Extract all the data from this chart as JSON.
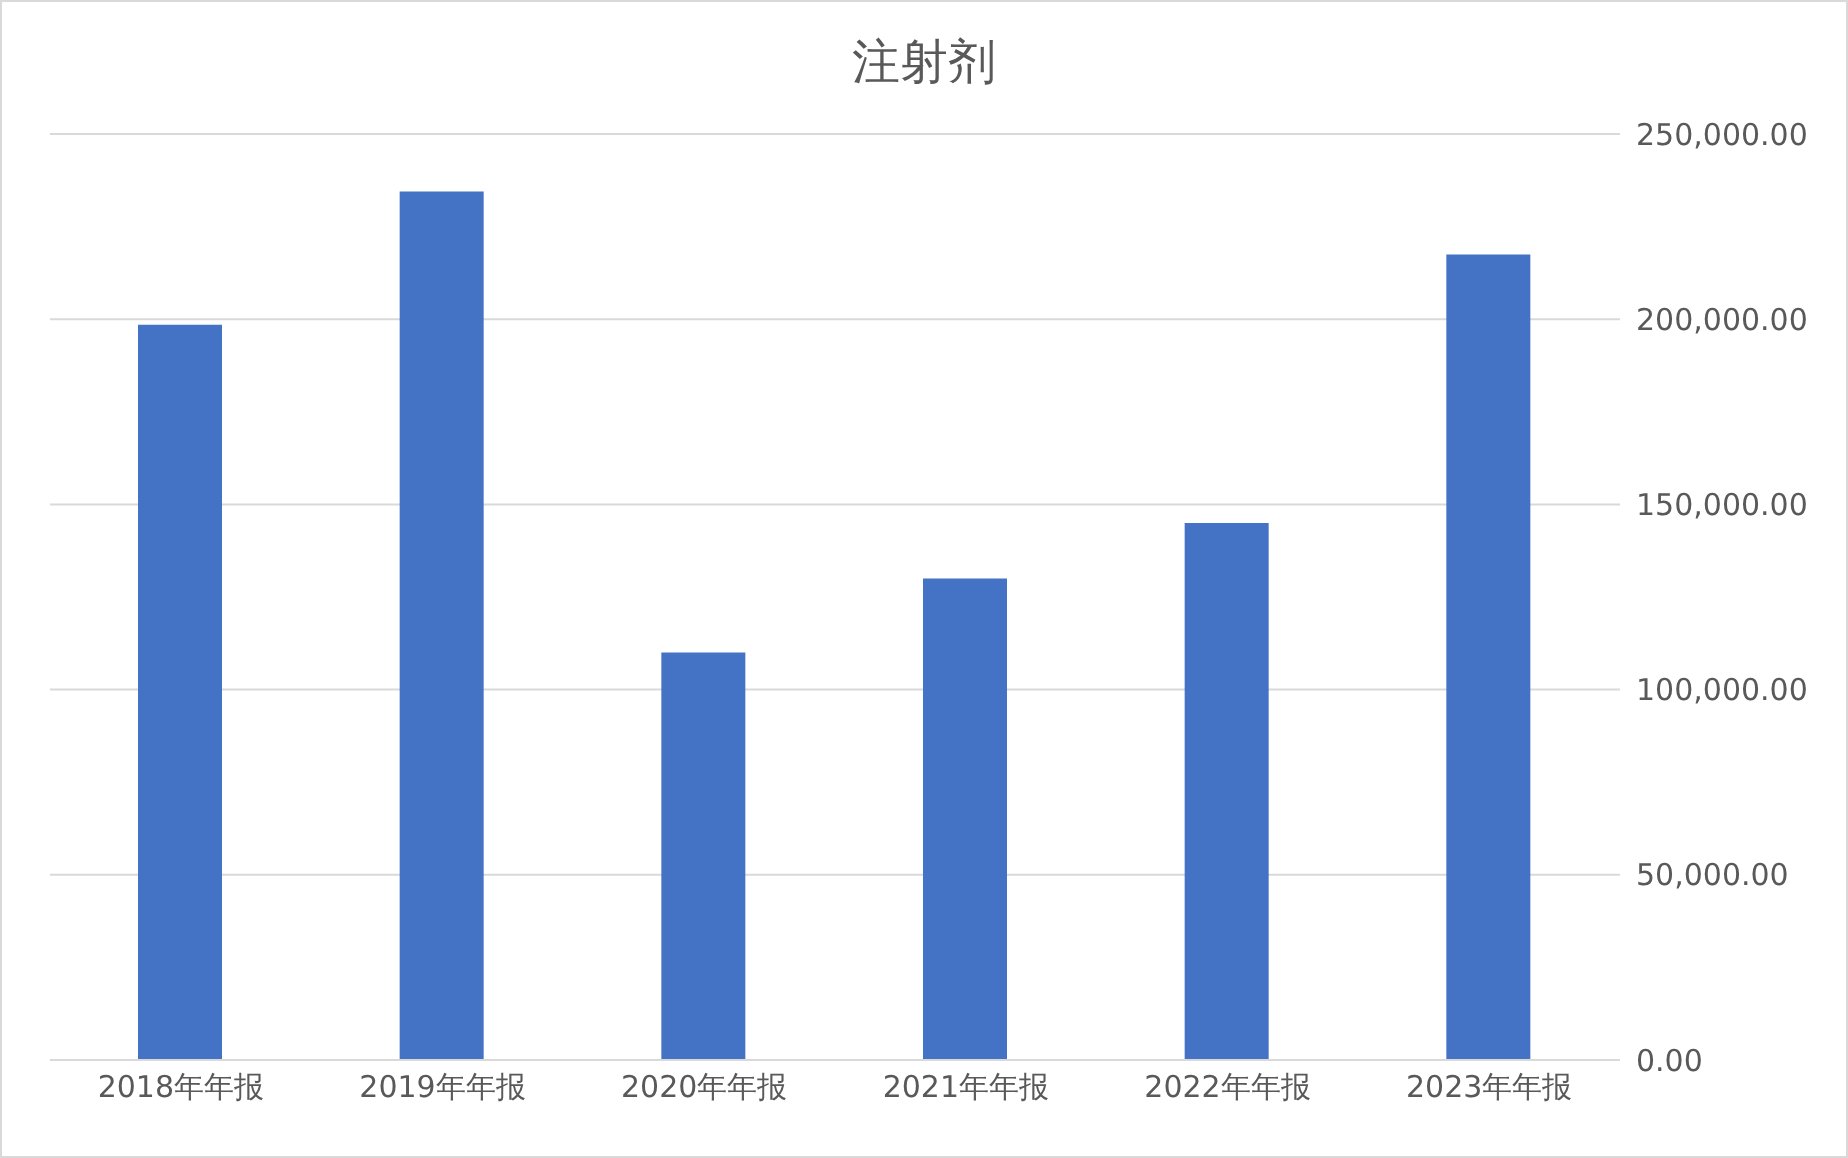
{
  "chart_data": {
    "type": "bar",
    "title": "注射剂",
    "categories": [
      "2018年年报",
      "2019年年报",
      "2020年年报",
      "2021年年报",
      "2022年年报",
      "2023年年报"
    ],
    "values": [
      198500,
      234500,
      110000,
      130000,
      145000,
      217500
    ],
    "color": "#4472c4",
    "ylim": [
      0,
      250000
    ],
    "yticks": [
      {
        "value": 0,
        "label": "0.00"
      },
      {
        "value": 50000,
        "label": "50,000.00"
      },
      {
        "value": 100000,
        "label": "100,000.00"
      },
      {
        "value": 150000,
        "label": "150,000.00"
      },
      {
        "value": 200000,
        "label": "200,000.00"
      },
      {
        "value": 250000,
        "label": "250,000.00"
      }
    ],
    "grid": "y"
  }
}
